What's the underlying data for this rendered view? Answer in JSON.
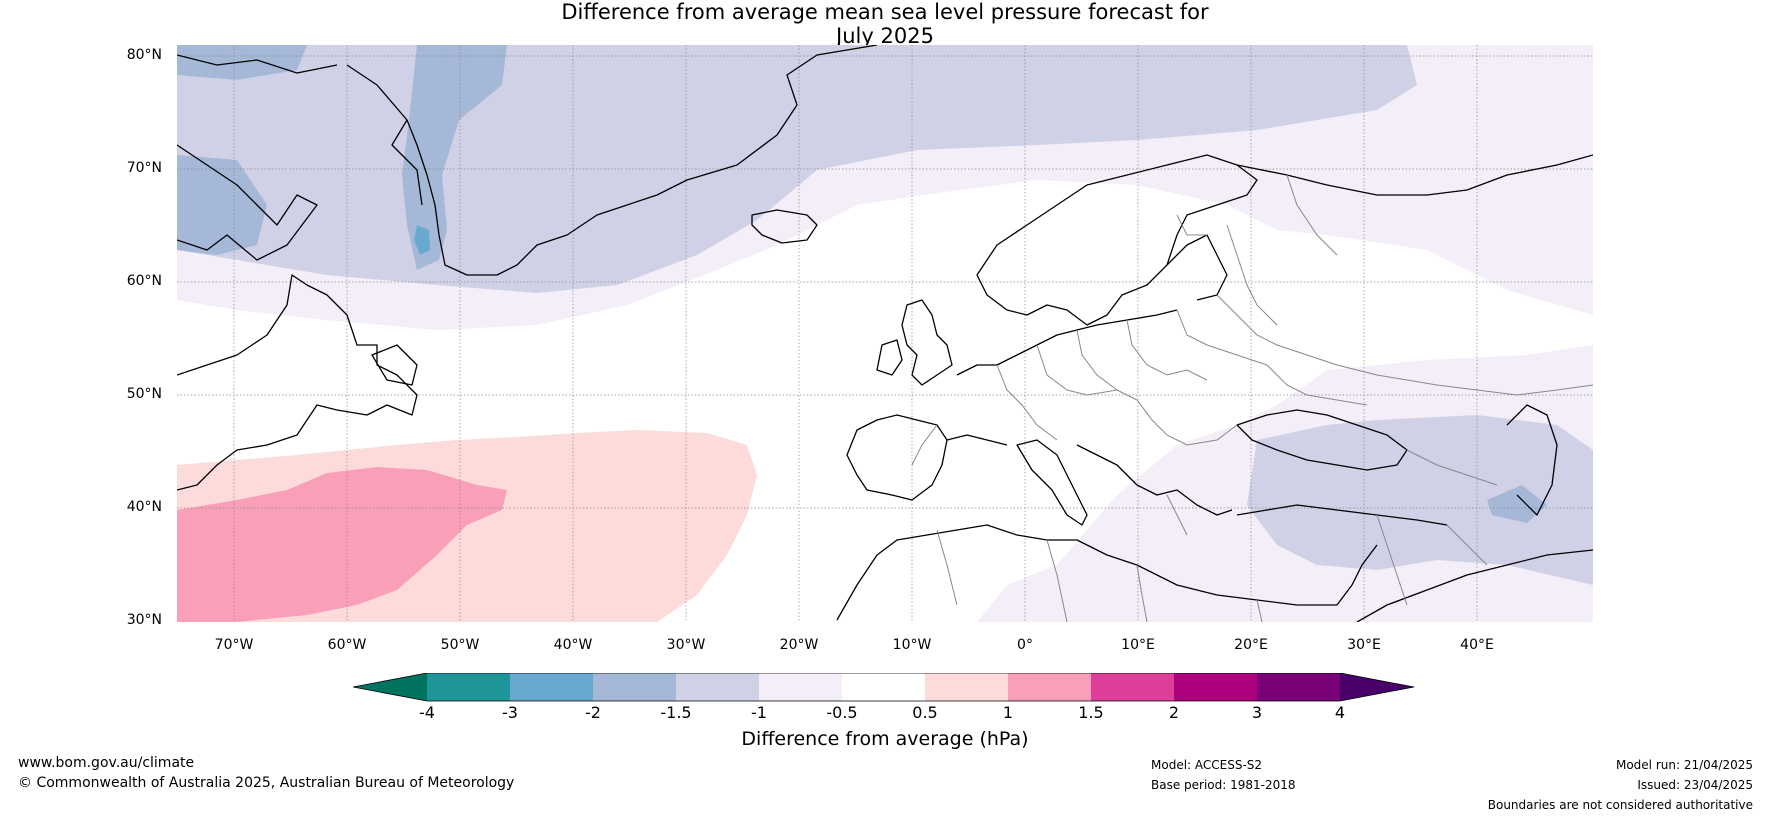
{
  "title": {
    "line1": "Difference from average mean sea level pressure forecast for",
    "line2": "July 2025"
  },
  "map": {
    "lat_labels": [
      "80°N",
      "70°N",
      "60°N",
      "50°N",
      "40°N",
      "30°N"
    ],
    "lon_labels": [
      "70°W",
      "60°W",
      "50°W",
      "40°W",
      "30°W",
      "20°W",
      "10°W",
      "0°",
      "10°E",
      "20°E",
      "30°E",
      "40°E"
    ],
    "colors": {
      "land_outline": "#000000",
      "borders": "#888888",
      "grid": "#888888"
    }
  },
  "colorbar": {
    "ticks": [
      "-4",
      "-3",
      "-2",
      "-1.5",
      "-1",
      "-0.5",
      "0.5",
      "1",
      "1.5",
      "2",
      "3",
      "4"
    ],
    "colors": [
      "#00735e",
      "#1e9599",
      "#67a9cf",
      "#a6b8d8",
      "#d0d1e6",
      "#f3eef7",
      "#ffffff",
      "#fddbdb",
      "#f9a0b8",
      "#de3d9a",
      "#ad017e",
      "#7a0177",
      "#49006a"
    ],
    "label": "Difference from average (hPa)"
  },
  "footer": {
    "website": "www.bom.gov.au/climate",
    "copyright": "© Commonwealth of Australia 2025, Australian Bureau of Meteorology",
    "model": "Model: ACCESS-S2",
    "base_period": "Base period: 1981-2018",
    "model_run": "Model run: 21/04/2025",
    "issued": "Issued: 23/04/2025",
    "disclaimer": "Boundaries are not considered authoritative"
  }
}
